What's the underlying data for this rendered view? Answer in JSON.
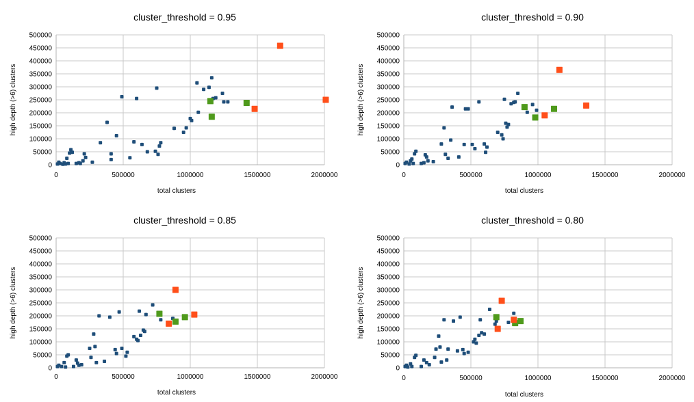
{
  "colors": {
    "blue": "#1f4e79",
    "green": "#4f9a1c",
    "red": "#ff4f1a",
    "grid": "#c8c8c8",
    "axis": "#b3b3b3"
  },
  "chart_data": [
    {
      "type": "scatter",
      "title": "cluster_threshold = 0.95",
      "xlabel": "total clusters",
      "ylabel": "high depth (>6) clusters",
      "xlim": [
        0,
        2000000
      ],
      "ylim": [
        0,
        500000
      ],
      "xticks": [
        "0",
        "500000",
        "1000000",
        "1500000",
        "2000000"
      ],
      "yticks": [
        "0",
        "50000",
        "100000",
        "150000",
        "200000",
        "250000",
        "300000",
        "350000",
        "400000",
        "450000",
        "500000"
      ],
      "grid": true,
      "series": [
        {
          "color": "#1f4e79",
          "marker": "small-square",
          "points": [
            [
              10000,
              3000
            ],
            [
              20000,
              10000
            ],
            [
              30000,
              5000
            ],
            [
              50000,
              2000
            ],
            [
              60000,
              8000
            ],
            [
              70000,
              3000
            ],
            [
              80000,
              25000
            ],
            [
              90000,
              5000
            ],
            [
              100000,
              45000
            ],
            [
              110000,
              58000
            ],
            [
              120000,
              48000
            ],
            [
              150000,
              5000
            ],
            [
              170000,
              8000
            ],
            [
              180000,
              5000
            ],
            [
              200000,
              15000
            ],
            [
              210000,
              42000
            ],
            [
              220000,
              28000
            ],
            [
              270000,
              10000
            ],
            [
              330000,
              85000
            ],
            [
              380000,
              163000
            ],
            [
              410000,
              42000
            ],
            [
              410000,
              20000
            ],
            [
              450000,
              112000
            ],
            [
              490000,
              262000
            ],
            [
              550000,
              27000
            ],
            [
              580000,
              88000
            ],
            [
              600000,
              255000
            ],
            [
              640000,
              78000
            ],
            [
              680000,
              50000
            ],
            [
              740000,
              52000
            ],
            [
              750000,
              295000
            ],
            [
              760000,
              40000
            ],
            [
              770000,
              72000
            ],
            [
              780000,
              85000
            ],
            [
              880000,
              140000
            ],
            [
              950000,
              125000
            ],
            [
              970000,
              142000
            ],
            [
              1000000,
              178000
            ],
            [
              1010000,
              170000
            ],
            [
              1050000,
              315000
            ],
            [
              1060000,
              202000
            ],
            [
              1100000,
              290000
            ],
            [
              1140000,
              298000
            ],
            [
              1160000,
              335000
            ],
            [
              1170000,
              255000
            ],
            [
              1190000,
              258000
            ],
            [
              1240000,
              275000
            ],
            [
              1250000,
              242000
            ],
            [
              1280000,
              242000
            ]
          ]
        },
        {
          "color": "#4f9a1c",
          "marker": "large-square",
          "points": [
            [
              1150000,
              245000
            ],
            [
              1160000,
              185000
            ],
            [
              1420000,
              238000
            ]
          ]
        },
        {
          "color": "#ff4f1a",
          "marker": "large-square",
          "points": [
            [
              1480000,
              215000
            ],
            [
              1670000,
              458000
            ],
            [
              2010000,
              250000
            ]
          ]
        }
      ]
    },
    {
      "type": "scatter",
      "title": "cluster_threshold = 0.90",
      "xlabel": "total clusters",
      "ylabel": "high depth (>6) clusters",
      "xlim": [
        0,
        2000000
      ],
      "ylim": [
        0,
        500000
      ],
      "xticks": [
        "0",
        "500000",
        "1000000",
        "1500000",
        "2000000"
      ],
      "yticks": [
        "0",
        "50000",
        "100000",
        "150000",
        "200000",
        "250000",
        "300000",
        "350000",
        "400000",
        "450000",
        "500000"
      ],
      "grid": true,
      "series": [
        {
          "color": "#1f4e79",
          "marker": "small-square",
          "points": [
            [
              10000,
              5000
            ],
            [
              20000,
              10000
            ],
            [
              40000,
              3000
            ],
            [
              50000,
              15000
            ],
            [
              60000,
              22000
            ],
            [
              70000,
              5000
            ],
            [
              80000,
              42000
            ],
            [
              90000,
              52000
            ],
            [
              130000,
              5000
            ],
            [
              150000,
              8000
            ],
            [
              160000,
              38000
            ],
            [
              170000,
              30000
            ],
            [
              180000,
              15000
            ],
            [
              220000,
              12000
            ],
            [
              280000,
              80000
            ],
            [
              300000,
              142000
            ],
            [
              310000,
              40000
            ],
            [
              330000,
              25000
            ],
            [
              350000,
              95000
            ],
            [
              360000,
              222000
            ],
            [
              410000,
              30000
            ],
            [
              450000,
              78000
            ],
            [
              460000,
              215000
            ],
            [
              480000,
              215000
            ],
            [
              510000,
              78000
            ],
            [
              530000,
              62000
            ],
            [
              560000,
              242000
            ],
            [
              600000,
              80000
            ],
            [
              610000,
              48000
            ],
            [
              620000,
              68000
            ],
            [
              700000,
              125000
            ],
            [
              730000,
              115000
            ],
            [
              740000,
              100000
            ],
            [
              750000,
              252000
            ],
            [
              760000,
              160000
            ],
            [
              770000,
              145000
            ],
            [
              780000,
              155000
            ],
            [
              800000,
              235000
            ],
            [
              820000,
              240000
            ],
            [
              830000,
              242000
            ],
            [
              850000,
              275000
            ],
            [
              920000,
              202000
            ],
            [
              960000,
              232000
            ],
            [
              990000,
              210000
            ]
          ]
        },
        {
          "color": "#4f9a1c",
          "marker": "large-square",
          "points": [
            [
              900000,
              222000
            ],
            [
              980000,
              182000
            ],
            [
              1120000,
              215000
            ]
          ]
        },
        {
          "color": "#ff4f1a",
          "marker": "large-square",
          "points": [
            [
              1050000,
              190000
            ],
            [
              1160000,
              365000
            ],
            [
              1360000,
              228000
            ]
          ]
        }
      ]
    },
    {
      "type": "scatter",
      "title": "cluster_threshold = 0.85",
      "xlabel": "total clusters",
      "ylabel": "high depth (>6) clusters",
      "xlim": [
        0,
        2000000
      ],
      "ylim": [
        0,
        500000
      ],
      "xticks": [
        "0",
        "500000",
        "1000000",
        "1500000",
        "2000000"
      ],
      "yticks": [
        "0",
        "50000",
        "100000",
        "150000",
        "200000",
        "250000",
        "300000",
        "350000",
        "400000",
        "450000",
        "500000"
      ],
      "grid": true,
      "series": [
        {
          "color": "#1f4e79",
          "marker": "small-square",
          "points": [
            [
              10000,
              5000
            ],
            [
              20000,
              10000
            ],
            [
              40000,
              5000
            ],
            [
              60000,
              20000
            ],
            [
              70000,
              3000
            ],
            [
              80000,
              45000
            ],
            [
              90000,
              50000
            ],
            [
              130000,
              5000
            ],
            [
              150000,
              30000
            ],
            [
              160000,
              18000
            ],
            [
              170000,
              10000
            ],
            [
              190000,
              12000
            ],
            [
              250000,
              75000
            ],
            [
              260000,
              40000
            ],
            [
              280000,
              130000
            ],
            [
              290000,
              82000
            ],
            [
              300000,
              20000
            ],
            [
              320000,
              200000
            ],
            [
              360000,
              25000
            ],
            [
              400000,
              195000
            ],
            [
              440000,
              70000
            ],
            [
              450000,
              55000
            ],
            [
              470000,
              215000
            ],
            [
              490000,
              75000
            ],
            [
              520000,
              45000
            ],
            [
              530000,
              60000
            ],
            [
              580000,
              120000
            ],
            [
              600000,
              110000
            ],
            [
              610000,
              105000
            ],
            [
              620000,
              218000
            ],
            [
              630000,
              125000
            ],
            [
              650000,
              145000
            ],
            [
              660000,
              140000
            ],
            [
              670000,
              205000
            ],
            [
              720000,
              242000
            ],
            [
              780000,
              185000
            ],
            [
              870000,
              190000
            ]
          ]
        },
        {
          "color": "#4f9a1c",
          "marker": "large-square",
          "points": [
            [
              770000,
              208000
            ],
            [
              890000,
              178000
            ],
            [
              960000,
              195000
            ]
          ]
        },
        {
          "color": "#ff4f1a",
          "marker": "large-square",
          "points": [
            [
              840000,
              170000
            ],
            [
              890000,
              300000
            ],
            [
              1030000,
              205000
            ]
          ]
        }
      ]
    },
    {
      "type": "scatter",
      "title": "cluster_threshold = 0.80",
      "xlabel": "total clusters",
      "ylabel": "high depth (>6) clusters",
      "xlim": [
        0,
        2000000
      ],
      "ylim": [
        0,
        500000
      ],
      "xticks": [
        "0",
        "500000",
        "1000000",
        "1500000",
        "2000000"
      ],
      "yticks": [
        "0",
        "50000",
        "100000",
        "150000",
        "200000",
        "250000",
        "300000",
        "350000",
        "400000",
        "450000",
        "500000"
      ],
      "grid": true,
      "series": [
        {
          "color": "#1f4e79",
          "marker": "small-square",
          "points": [
            [
              10000,
              5000
            ],
            [
              20000,
              10000
            ],
            [
              30000,
              3000
            ],
            [
              50000,
              15000
            ],
            [
              60000,
              5000
            ],
            [
              80000,
              40000
            ],
            [
              90000,
              48000
            ],
            [
              130000,
              5000
            ],
            [
              150000,
              30000
            ],
            [
              170000,
              20000
            ],
            [
              190000,
              12000
            ],
            [
              230000,
              40000
            ],
            [
              240000,
              72000
            ],
            [
              260000,
              122000
            ],
            [
              270000,
              80000
            ],
            [
              280000,
              22000
            ],
            [
              300000,
              185000
            ],
            [
              320000,
              30000
            ],
            [
              330000,
              72000
            ],
            [
              370000,
              180000
            ],
            [
              400000,
              65000
            ],
            [
              420000,
              195000
            ],
            [
              440000,
              70000
            ],
            [
              450000,
              55000
            ],
            [
              480000,
              60000
            ],
            [
              520000,
              100000
            ],
            [
              530000,
              110000
            ],
            [
              540000,
              95000
            ],
            [
              560000,
              125000
            ],
            [
              570000,
              185000
            ],
            [
              580000,
              135000
            ],
            [
              600000,
              130000
            ],
            [
              640000,
              225000
            ],
            [
              680000,
              168000
            ],
            [
              690000,
              180000
            ],
            [
              780000,
              175000
            ],
            [
              820000,
              210000
            ]
          ]
        },
        {
          "color": "#4f9a1c",
          "marker": "large-square",
          "points": [
            [
              690000,
              195000
            ],
            [
              830000,
              172000
            ],
            [
              870000,
              180000
            ]
          ]
        },
        {
          "color": "#ff4f1a",
          "marker": "large-square",
          "points": [
            [
              700000,
              150000
            ],
            [
              730000,
              258000
            ],
            [
              820000,
              185000
            ]
          ]
        }
      ]
    }
  ]
}
